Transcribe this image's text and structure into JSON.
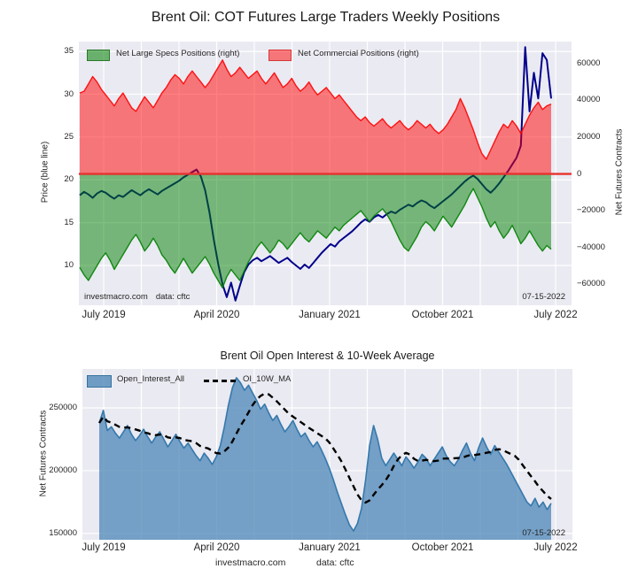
{
  "colors": {
    "plot_bg": "#eaeaf2",
    "grid": "#ffffff",
    "price_line": "#00008b",
    "specs_fill": "#008000",
    "commercials_fill": "#ff0000",
    "zero_line": "#e8332e",
    "oi_fill": "#4682b4",
    "oi_edge": "#3579ac",
    "ma_line": "#000000"
  },
  "figure": {
    "footer": {
      "site": "investmacro.com",
      "source": "data: cftc"
    }
  },
  "chart_data": [
    {
      "type": "area",
      "title": "Brent Oil: COT Futures Large Traders Weekly Positions",
      "ylabel_left": "Price (blue line)",
      "ylabel_right": "Net Futures Contracts",
      "x_tick_labels": [
        "July 2019",
        "April 2020",
        "January 2021",
        "October 2021",
        "July 2022"
      ],
      "x_gridline_count": 13,
      "x_labeled_gridlines": [
        0,
        3,
        6,
        9,
        12
      ],
      "y_left": {
        "lim": [
          5.35,
          36.15
        ],
        "ticks": [
          {
            "v": 10,
            "label": "10"
          },
          {
            "v": 15,
            "label": "15"
          },
          {
            "v": 20,
            "label": "20"
          },
          {
            "v": 25,
            "label": "25"
          },
          {
            "v": 30,
            "label": "30"
          },
          {
            "v": 35,
            "label": "35"
          }
        ]
      },
      "y_right": {
        "lim": [
          -71500,
          72000
        ],
        "unit": "contracts",
        "ticks": [
          {
            "v": -60000,
            "label": "−60000"
          },
          {
            "v": -40000,
            "label": "−40000"
          },
          {
            "v": -20000,
            "label": "−20000"
          },
          {
            "v": 0,
            "label": "0"
          },
          {
            "v": 20000,
            "label": "20000"
          },
          {
            "v": 40000,
            "label": "40000"
          },
          {
            "v": 60000,
            "label": "60000"
          }
        ]
      },
      "legend": [
        {
          "label": "Net Large Specs Positions (right)",
          "swatch": "green"
        },
        {
          "label": "Net Commercial Positions (right)",
          "swatch": "red"
        }
      ],
      "annotations": {
        "watermark_site": "investmacro.com",
        "watermark_source": "data: cftc",
        "date": "07-15-2022"
      },
      "zero_line": 0,
      "series": [
        {
          "name": "Price (blue line)",
          "axis": "left",
          "style": "line",
          "color": "#00008b",
          "values": [
            18.2,
            18.6,
            18.3,
            17.9,
            18.4,
            18.7,
            18.5,
            18.1,
            17.8,
            18.2,
            18.0,
            18.4,
            18.8,
            18.5,
            18.2,
            18.6,
            18.9,
            18.6,
            18.3,
            18.7,
            19.0,
            19.3,
            19.6,
            19.9,
            20.3,
            20.6,
            20.9,
            21.2,
            20.4,
            18.8,
            16.2,
            13.0,
            10.2,
            7.8,
            6.3,
            8.0,
            5.9,
            7.6,
            9.2,
            10.1,
            10.6,
            10.9,
            10.5,
            10.8,
            11.1,
            10.7,
            10.3,
            10.6,
            10.9,
            10.4,
            10.0,
            9.6,
            10.1,
            9.7,
            10.3,
            10.9,
            11.5,
            12.0,
            12.5,
            12.2,
            12.8,
            13.2,
            13.6,
            14.0,
            14.5,
            15.0,
            15.4,
            15.1,
            15.6,
            15.9,
            15.6,
            16.0,
            16.3,
            16.1,
            16.5,
            16.8,
            17.1,
            16.9,
            17.3,
            17.6,
            17.4,
            17.0,
            16.7,
            17.1,
            17.5,
            17.9,
            18.3,
            18.8,
            19.3,
            19.8,
            20.2,
            20.5,
            20.1,
            19.5,
            18.9,
            18.5,
            19.0,
            19.6,
            20.3,
            21.0,
            21.8,
            22.6,
            24.0,
            35.5,
            28.0,
            32.5,
            29.5,
            34.8,
            34.0,
            29.5
          ]
        },
        {
          "name": "Net Large Specs Positions",
          "axis": "right",
          "style": "area_from_zero",
          "color": "#008000",
          "unit": "thousand contracts",
          "values": [
            -51,
            -55,
            -58,
            -54,
            -50,
            -46,
            -43,
            -47,
            -52,
            -48,
            -44,
            -40,
            -36,
            -33,
            -37,
            -42,
            -39,
            -35,
            -39,
            -44,
            -47,
            -51,
            -54,
            -50,
            -46,
            -50,
            -54,
            -51,
            -48,
            -45,
            -49,
            -54,
            -58,
            -62,
            -56,
            -52,
            -55,
            -58,
            -53,
            -48,
            -44,
            -40,
            -37,
            -40,
            -43,
            -40,
            -36,
            -38,
            -41,
            -38,
            -35,
            -32,
            -35,
            -37,
            -34,
            -31,
            -33,
            -35,
            -32,
            -29,
            -31,
            -28,
            -26,
            -24,
            -22,
            -20,
            -23,
            -26,
            -23,
            -21,
            -19,
            -22,
            -26,
            -31,
            -36,
            -40,
            -42,
            -38,
            -34,
            -29,
            -26,
            -28,
            -31,
            -27,
            -23,
            -26,
            -29,
            -25,
            -21,
            -17,
            -12,
            -8,
            -13,
            -18,
            -24,
            -29,
            -26,
            -31,
            -35,
            -32,
            -28,
            -33,
            -38,
            -35,
            -31,
            -35,
            -39,
            -42,
            -39,
            -41
          ]
        },
        {
          "name": "Net Commercial Positions",
          "axis": "right",
          "style": "area_from_zero",
          "color": "#ff0000",
          "unit": "thousand contracts",
          "values": [
            44,
            45,
            49,
            53,
            50,
            46,
            43,
            40,
            37,
            41,
            44,
            40,
            36,
            34,
            38,
            42,
            39,
            36,
            40,
            44,
            47,
            51,
            54,
            52,
            49,
            53,
            56,
            53,
            50,
            47,
            50,
            54,
            58,
            62,
            57,
            53,
            55,
            58,
            55,
            52,
            54,
            56,
            52,
            49,
            52,
            55,
            51,
            47,
            49,
            52,
            48,
            45,
            47,
            50,
            46,
            43,
            45,
            47,
            44,
            41,
            43,
            40,
            37,
            34,
            31,
            29,
            31,
            28,
            26,
            28,
            30,
            27,
            25,
            27,
            29,
            26,
            24,
            26,
            29,
            27,
            25,
            27,
            24,
            22,
            24,
            27,
            31,
            35,
            41,
            36,
            30,
            24,
            17,
            11,
            8,
            13,
            18,
            23,
            27,
            25,
            29,
            26,
            22,
            27,
            32,
            36,
            39,
            35,
            37,
            38
          ]
        }
      ]
    },
    {
      "type": "area",
      "title": "Brent Oil Open Interest & 10-Week Average",
      "ylabel_left": "Net Futures Contracts",
      "x_tick_labels": [
        "July 2019",
        "April 2020",
        "January 2021",
        "October 2021",
        "July 2022"
      ],
      "x_gridline_count": 13,
      "x_labeled_gridlines": [
        0,
        3,
        6,
        9,
        12
      ],
      "y_left": {
        "lim": [
          145000,
          281000
        ],
        "ticks": [
          {
            "v": 150000,
            "label": "150000"
          },
          {
            "v": 200000,
            "label": "200000"
          },
          {
            "v": 250000,
            "label": "250000"
          }
        ]
      },
      "legend": [
        {
          "label": "Open_Interest_All",
          "swatch": "steelblue"
        },
        {
          "label": "OI_10W_MA",
          "swatch": "dashed-black"
        }
      ],
      "annotations": {
        "date": "07-15-2022"
      },
      "series": [
        {
          "name": "Open_Interest_All",
          "style": "area_to_bottom",
          "color": "#4682b4",
          "edge": "#3579ac",
          "unit": "thousand contracts",
          "values": [
            238,
            248,
            232,
            235,
            230,
            226,
            231,
            236,
            229,
            224,
            228,
            233,
            227,
            222,
            227,
            231,
            225,
            219,
            224,
            229,
            223,
            218,
            222,
            217,
            212,
            208,
            214,
            210,
            205,
            211,
            220,
            235,
            252,
            266,
            274,
            270,
            264,
            268,
            262,
            256,
            249,
            253,
            246,
            240,
            244,
            237,
            231,
            235,
            240,
            233,
            227,
            230,
            224,
            219,
            223,
            217,
            210,
            202,
            193,
            183,
            174,
            165,
            157,
            152,
            158,
            170,
            192,
            220,
            236,
            225,
            210,
            204,
            209,
            214,
            209,
            204,
            211,
            207,
            202,
            207,
            213,
            210,
            204,
            209,
            214,
            219,
            212,
            207,
            204,
            209,
            216,
            222,
            214,
            208,
            218,
            226,
            219,
            213,
            220,
            215,
            210,
            205,
            199,
            193,
            187,
            181,
            175,
            172,
            178,
            171,
            175,
            169,
            174
          ]
        },
        {
          "name": "OI_10W_MA",
          "style": "dashed_line",
          "color": "#000000",
          "derived": "10-week rolling mean of Open_Interest_All"
        }
      ]
    }
  ]
}
